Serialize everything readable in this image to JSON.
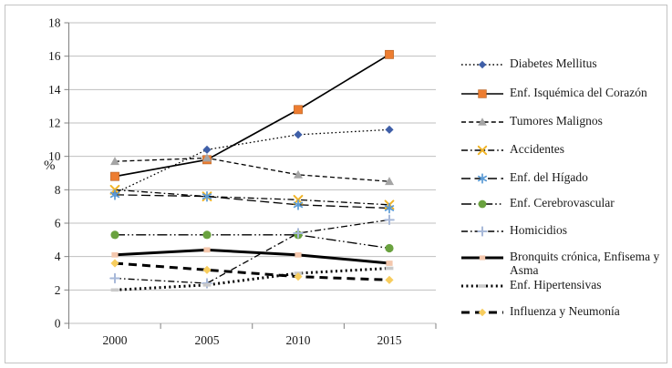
{
  "figure": {
    "background": "#ffffff",
    "border_color": "#c3c3c3",
    "gridline_color": "#bfbfbf",
    "axis_color": "#808080",
    "text_color": "#1a1a1a"
  },
  "chart_data": {
    "type": "line",
    "title": "",
    "xlabel": "",
    "ylabel": "%",
    "x": [
      "2000",
      "2005",
      "2010",
      "2015"
    ],
    "ylim": [
      0,
      18
    ],
    "ytick_step": 2,
    "yticks": [
      0,
      2,
      4,
      6,
      8,
      10,
      12,
      14,
      16,
      18
    ],
    "grid": "horizontal",
    "legend_position": "right",
    "series": [
      {
        "name": "Diabetes Mellitus",
        "values": [
          7.8,
          10.4,
          11.3,
          11.6
        ],
        "marker": "diamond",
        "marker_color": "#3f5fa8",
        "line_style": "dotted",
        "line_color": "#000000",
        "thick": false
      },
      {
        "name": "Enf. Isquémica del Corazón",
        "values": [
          8.8,
          9.8,
          12.8,
          16.1
        ],
        "marker": "square",
        "marker_color": "#ed7d31",
        "line_style": "solid",
        "line_color": "#000000",
        "thick": false
      },
      {
        "name": "Tumores Malignos",
        "values": [
          9.7,
          9.9,
          8.9,
          8.5
        ],
        "marker": "triangle",
        "marker_color": "#a5a5a5",
        "line_style": "dashed",
        "line_color": "#000000",
        "thick": false
      },
      {
        "name": "Accidentes",
        "values": [
          8.0,
          7.6,
          7.4,
          7.1
        ],
        "marker": "x",
        "marker_color": "#f0b428",
        "line_style": "dashdot",
        "line_color": "#000000",
        "thick": false
      },
      {
        "name": "Enf. del Hígado",
        "values": [
          7.7,
          7.6,
          7.1,
          6.9
        ],
        "marker": "asterisk",
        "marker_color": "#5b9bd5",
        "line_style": "longdash",
        "line_color": "#000000",
        "thick": false
      },
      {
        "name": "Enf. Cerebrovascular",
        "values": [
          5.3,
          5.3,
          5.3,
          4.5
        ],
        "marker": "circle",
        "marker_color": "#6aa23f",
        "line_style": "dashdotdot",
        "line_color": "#000000",
        "thick": false
      },
      {
        "name": "Homicidios",
        "values": [
          2.7,
          2.4,
          5.4,
          6.2
        ],
        "marker": "plus",
        "marker_color": "#a7b8d8",
        "line_style": "dashdot",
        "line_color": "#000000",
        "thick": false
      },
      {
        "name": "Bronquits crónica, Enfisema y Asma",
        "values": [
          4.1,
          4.4,
          4.1,
          3.6
        ],
        "marker": "small-square",
        "marker_color": "#f4c7ad",
        "line_style": "solid",
        "line_color": "#000000",
        "thick": true
      },
      {
        "name": "Enf. Hipertensivas",
        "values": [
          2.0,
          2.3,
          3.0,
          3.3
        ],
        "marker": "dash",
        "marker_color": "#c9c9c9",
        "line_style": "dotted",
        "line_color": "#000000",
        "thick": true
      },
      {
        "name": "Influenza y Neumonía",
        "values": [
          3.6,
          3.2,
          2.8,
          2.6
        ],
        "marker": "diamond",
        "marker_color": "#f7cd5e",
        "line_style": "dashed",
        "line_color": "#000000",
        "thick": true
      }
    ]
  }
}
